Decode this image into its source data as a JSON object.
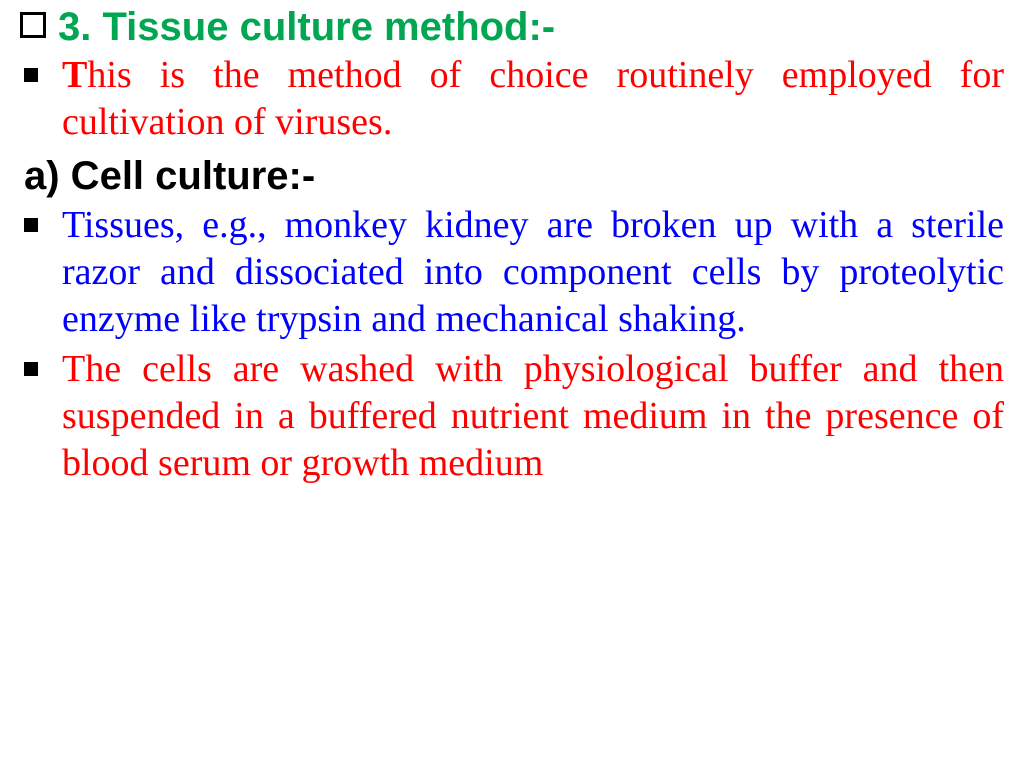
{
  "heading1": "3. Tissue culture method:-",
  "para1_cap": "T",
  "para1_rest": "his is the method of choice routinely employed for cultivation of viruses.",
  "heading2": "a) Cell culture:-",
  "para2": " Tissues, e.g., monkey kidney are broken up with a sterile razor and dissociated into component cells by proteolytic enzyme like trypsin and mechanical shaking.",
  "para3": " The cells are washed with physiological buffer and then suspended in a buffered nutrient medium in the presence of blood serum or growth medium",
  "colors": {
    "green": "#00a650",
    "red": "#ff0000",
    "blue": "#0000ff",
    "black": "#000000",
    "background": "#ffffff"
  },
  "typography": {
    "heading_font": "Arial",
    "heading_size_pt": 30,
    "body_font": "Times New Roman",
    "body_size_pt": 28
  }
}
